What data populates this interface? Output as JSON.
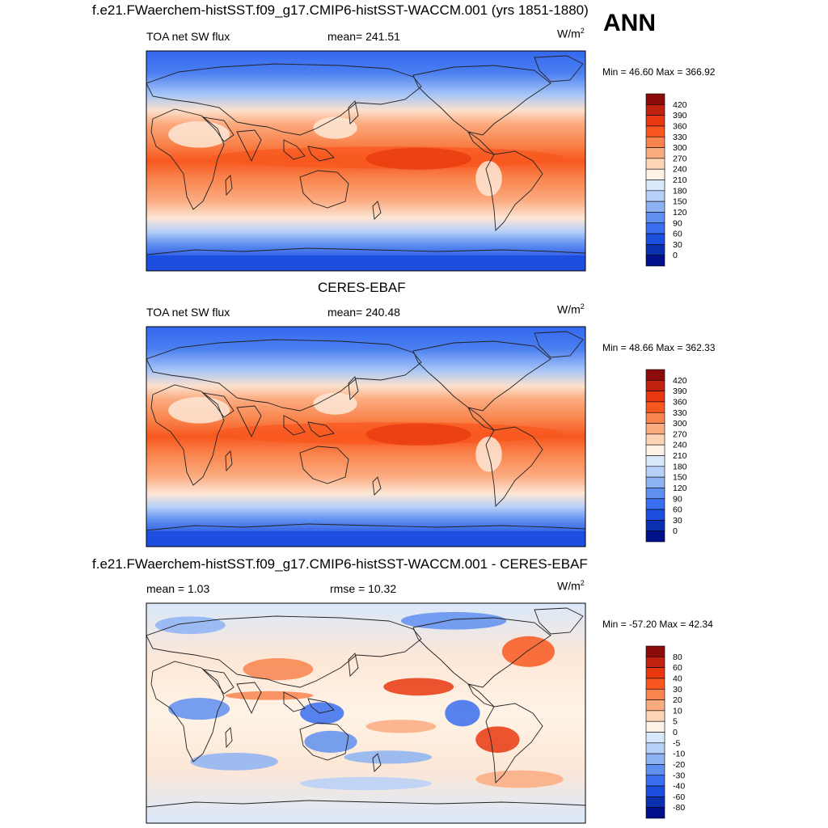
{
  "season": "ANN",
  "panels": [
    {
      "header": "f.e21.FWaerchem-histSST.f09_g17.CMIP6-histSST-WACCM.001 (yrs 1851-1880)",
      "left": "TOA net SW flux",
      "center": "mean= 241.51",
      "units": "W/m",
      "units_sup": "2",
      "minmax": "Min =  46.60 Max = 366.92"
    },
    {
      "header": "CERES-EBAF",
      "left": "TOA net SW flux",
      "center": "mean= 240.48",
      "units": "W/m",
      "units_sup": "2",
      "minmax": "Min =  48.66 Max = 362.33"
    },
    {
      "header": "f.e21.FWaerchem-histSST.f09_g17.CMIP6-histSST-WACCM.001 - CERES-EBAF",
      "left": "mean =   1.03",
      "center": "rmse =  10.32",
      "units": "W/m",
      "units_sup": "2",
      "minmax": "Min = -57.20 Max =  42.34"
    }
  ],
  "chart_data": [
    {
      "type": "heatmap",
      "title": "f.e21.FWaerchem-histSST.f09_g17.CMIP6-histSST-WACCM.001 (yrs 1851-1880)",
      "variable": "TOA net SW flux",
      "units": "W/m2",
      "mean": 241.51,
      "min": 46.6,
      "max": 366.92,
      "colorbar_levels": [
        "420",
        "390",
        "360",
        "330",
        "300",
        "270",
        "240",
        "210",
        "180",
        "150",
        "120",
        "90",
        "60",
        "30",
        "0"
      ],
      "colorbar_colors": [
        "#8b0a0a",
        "#c0220f",
        "#e8380f",
        "#f8581f",
        "#f9844d",
        "#fbab80",
        "#fcd4b6",
        "#fef3e6",
        "#d9e8fb",
        "#b7d0f8",
        "#8db3f3",
        "#5f8ff0",
        "#3a6ef0",
        "#1c4ee0",
        "#0a30b0",
        "#00108a"
      ]
    },
    {
      "type": "heatmap",
      "title": "CERES-EBAF",
      "variable": "TOA net SW flux",
      "units": "W/m2",
      "mean": 240.48,
      "min": 48.66,
      "max": 362.33,
      "colorbar_levels": [
        "420",
        "390",
        "360",
        "330",
        "300",
        "270",
        "240",
        "210",
        "180",
        "150",
        "120",
        "90",
        "60",
        "30",
        "0"
      ],
      "colorbar_colors": [
        "#8b0a0a",
        "#c0220f",
        "#e8380f",
        "#f8581f",
        "#f9844d",
        "#fbab80",
        "#fcd4b6",
        "#fef3e6",
        "#d9e8fb",
        "#b7d0f8",
        "#8db3f3",
        "#5f8ff0",
        "#3a6ef0",
        "#1c4ee0",
        "#0a30b0",
        "#00108a"
      ]
    },
    {
      "type": "heatmap",
      "title": "f.e21.FWaerchem-histSST.f09_g17.CMIP6-histSST-WACCM.001 - CERES-EBAF",
      "units": "W/m2",
      "mean": 1.03,
      "rmse": 10.32,
      "min": -57.2,
      "max": 42.34,
      "colorbar_levels": [
        "80",
        "60",
        "40",
        "30",
        "20",
        "10",
        "5",
        "0",
        "-5",
        "-10",
        "-20",
        "-30",
        "-40",
        "-60",
        "-80"
      ],
      "colorbar_colors": [
        "#8b0a0a",
        "#c0220f",
        "#e8380f",
        "#f8581f",
        "#f9844d",
        "#fbab80",
        "#fcd4b6",
        "#fef3e6",
        "#d9e8fb",
        "#b7d0f8",
        "#8db3f3",
        "#5f8ff0",
        "#3a6ef0",
        "#1c4ee0",
        "#0a30b0",
        "#00108a"
      ]
    }
  ]
}
